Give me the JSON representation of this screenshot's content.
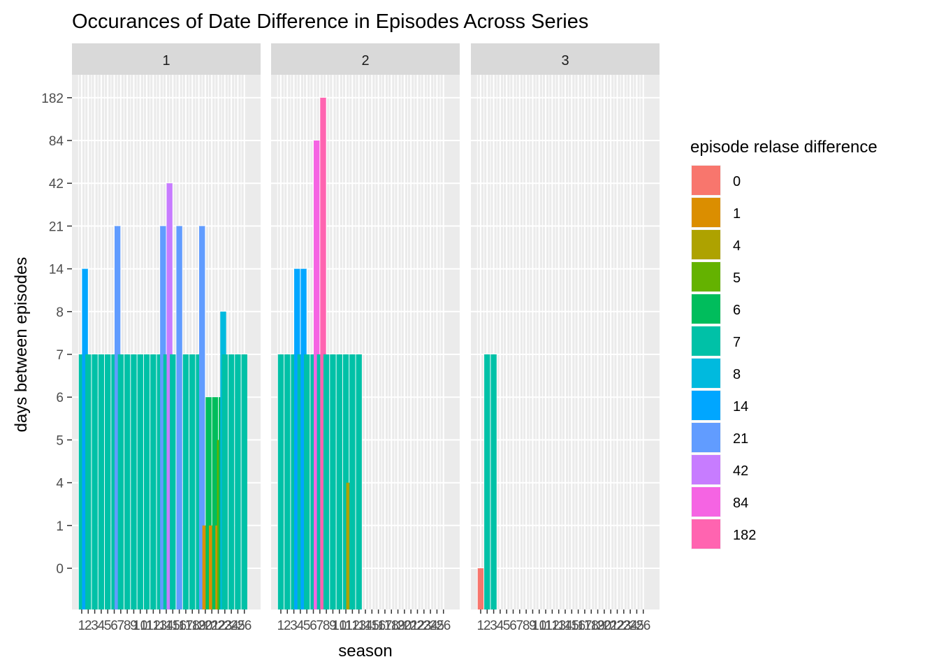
{
  "chart_data": {
    "type": "bar",
    "title": "Occurances of Date Difference in Episodes Across Series",
    "xlabel": "season",
    "ylabel": "days between episodes",
    "y_tick_labels": [
      "0",
      "1",
      "4",
      "5",
      "6",
      "7",
      "8",
      "14",
      "21",
      "42",
      "84",
      "182"
    ],
    "y_scale": "categorical (one band per distinct difference value)",
    "x_tick_labels": [
      "1",
      "2",
      "3",
      "4",
      "5",
      "6",
      "7",
      "8",
      "9",
      "10",
      "11",
      "12",
      "13",
      "14",
      "15",
      "16",
      "17",
      "18",
      "19",
      "20",
      "21",
      "22",
      "23",
      "24",
      "25",
      "26"
    ],
    "facet_by": "series",
    "panels": [
      {
        "label": "1",
        "bars": [
          {
            "x": 1,
            "difference": "7"
          },
          {
            "x": 1.5,
            "difference": "14"
          },
          {
            "x": 2,
            "difference": "7"
          },
          {
            "x": 3,
            "difference": "7"
          },
          {
            "x": 4,
            "difference": "7"
          },
          {
            "x": 5,
            "difference": "7"
          },
          {
            "x": 6,
            "difference": "7"
          },
          {
            "x": 6.5,
            "difference": "21"
          },
          {
            "x": 7,
            "difference": "7"
          },
          {
            "x": 8,
            "difference": "7"
          },
          {
            "x": 9,
            "difference": "7"
          },
          {
            "x": 10,
            "difference": "7"
          },
          {
            "x": 11,
            "difference": "7"
          },
          {
            "x": 12,
            "difference": "7"
          },
          {
            "x": 13,
            "difference": "7"
          },
          {
            "x": 13.5,
            "difference": "21"
          },
          {
            "x": 14,
            "difference": "7"
          },
          {
            "x": 14.5,
            "difference": "42"
          },
          {
            "x": 15,
            "difference": "7"
          },
          {
            "x": 16,
            "difference": "21"
          },
          {
            "x": 17,
            "difference": "7"
          },
          {
            "x": 18,
            "difference": "7"
          },
          {
            "x": 19,
            "difference": "7"
          },
          {
            "x": 19.5,
            "difference": "21"
          },
          {
            "x": 20,
            "difference": "1"
          },
          {
            "x": 20.5,
            "difference": "6"
          },
          {
            "x": 21,
            "difference": "1"
          },
          {
            "x": 21.5,
            "difference": "6"
          },
          {
            "x": 22,
            "difference": "1"
          },
          {
            "x": 22.25,
            "difference": "5"
          },
          {
            "x": 22.5,
            "difference": "6"
          },
          {
            "x": 22.75,
            "difference": "8"
          },
          {
            "x": 23,
            "difference": "7"
          },
          {
            "x": 24,
            "difference": "7"
          },
          {
            "x": 25,
            "difference": "7"
          },
          {
            "x": 26,
            "difference": "7"
          }
        ]
      },
      {
        "label": "2",
        "bars": [
          {
            "x": 1,
            "difference": "7"
          },
          {
            "x": 2,
            "difference": "7"
          },
          {
            "x": 3,
            "difference": "7"
          },
          {
            "x": 3.5,
            "difference": "14"
          },
          {
            "x": 4,
            "difference": "7"
          },
          {
            "x": 4.5,
            "difference": "14"
          },
          {
            "x": 5,
            "difference": "7"
          },
          {
            "x": 6,
            "difference": "7"
          },
          {
            "x": 6.5,
            "difference": "84"
          },
          {
            "x": 7,
            "difference": "7"
          },
          {
            "x": 7.5,
            "difference": "182"
          },
          {
            "x": 8,
            "difference": "7"
          },
          {
            "x": 9,
            "difference": "7"
          },
          {
            "x": 10,
            "difference": "7"
          },
          {
            "x": 11,
            "difference": "7"
          },
          {
            "x": 11.5,
            "difference": "4"
          },
          {
            "x": 12,
            "difference": "7"
          },
          {
            "x": 13,
            "difference": "7"
          }
        ]
      },
      {
        "label": "3",
        "bars": [
          {
            "x": 1,
            "difference": "0"
          },
          {
            "x": 2,
            "difference": "7"
          },
          {
            "x": 3,
            "difference": "7"
          }
        ]
      }
    ],
    "legend": {
      "title": "episode relase difference",
      "position": "right",
      "items": [
        {
          "label": "0",
          "color": "#F8766D"
        },
        {
          "label": "1",
          "color": "#DB8E00"
        },
        {
          "label": "4",
          "color": "#AEA200"
        },
        {
          "label": "5",
          "color": "#64B200"
        },
        {
          "label": "6",
          "color": "#00BD5C"
        },
        {
          "label": "7",
          "color": "#00C1A7"
        },
        {
          "label": "8",
          "color": "#00BADE"
        },
        {
          "label": "14",
          "color": "#00A6FF"
        },
        {
          "label": "21",
          "color": "#619CFF"
        },
        {
          "label": "42",
          "color": "#C77CFF"
        },
        {
          "label": "84",
          "color": "#F564E3"
        },
        {
          "label": "182",
          "color": "#FF64B0"
        }
      ]
    },
    "panel_background": "#EBEBEB",
    "strip_background": "#D9D9D9",
    "grid": true
  }
}
